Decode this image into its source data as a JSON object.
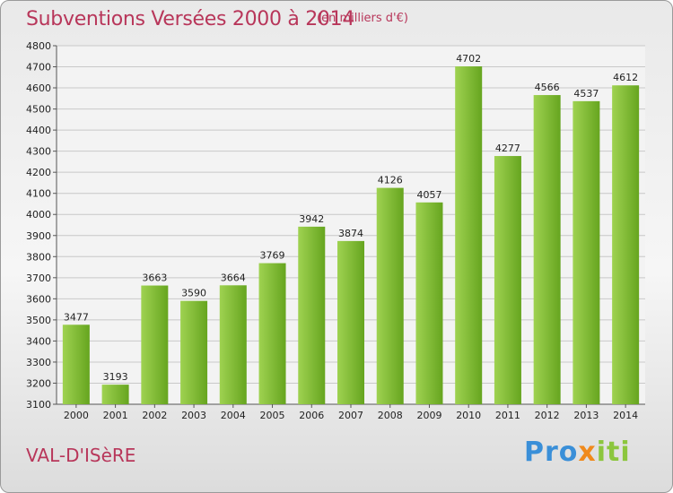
{
  "header": {
    "title": "Subventions Versées 2000 à 2014",
    "unit_note": "(en milliers d'€)"
  },
  "footer": {
    "place": "VAL-D'ISèRE",
    "logo": "Proxiti"
  },
  "colors": {
    "bar_light": "#9fd251",
    "bar_dark": "#66a51f",
    "title": "#b8365a",
    "grid": "#c8c8c8"
  },
  "chart_data": {
    "type": "bar",
    "title": "Subventions Versées 2000 à 2014",
    "subtitle": "(en milliers d'€)",
    "categories": [
      "2000",
      "2001",
      "2002",
      "2003",
      "2004",
      "2005",
      "2006",
      "2007",
      "2008",
      "2009",
      "2010",
      "2011",
      "2012",
      "2013",
      "2014"
    ],
    "values": [
      3477,
      3193,
      3663,
      3590,
      3664,
      3769,
      3942,
      3874,
      4126,
      4057,
      4702,
      4277,
      4566,
      4537,
      4612
    ],
    "ylim": [
      3100,
      4800
    ],
    "yticks": [
      3100,
      3200,
      3300,
      3400,
      3500,
      3600,
      3700,
      3800,
      3900,
      4000,
      4100,
      4200,
      4300,
      4400,
      4500,
      4600,
      4700,
      4800
    ],
    "grid": true,
    "xlabel": "",
    "ylabel": ""
  }
}
